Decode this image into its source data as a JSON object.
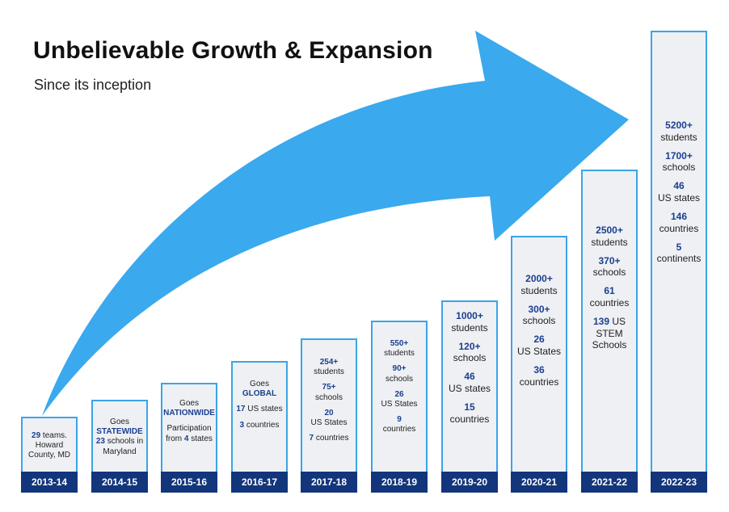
{
  "title": "Unbelievable Growth & Expansion",
  "subtitle": "Since its inception",
  "colors": {
    "arrow": "#3aa9ee",
    "bar_fill": "#eef0f4",
    "bar_border": "#3ba4e6",
    "label_bg": "#12357c",
    "highlight": "#1c3f8f"
  },
  "chart_data": {
    "type": "bar",
    "title": "Unbelievable Growth & Expansion",
    "subtitle": "Since its inception",
    "categories": [
      "2013-14",
      "2014-15",
      "2015-16",
      "2016-17",
      "2017-18",
      "2018-19",
      "2019-20",
      "2020-21",
      "2021-22",
      "2022-23"
    ],
    "series": [
      {
        "values": [
          1,
          2,
          3,
          4,
          5,
          6,
          7,
          8,
          9,
          10
        ]
      }
    ],
    "annotations": [
      [
        [
          {
            "t": "29",
            "b": true
          },
          {
            "t": " teams."
          }
        ],
        [
          {
            "t": "Howard"
          }
        ],
        [
          {
            "t": "County, MD"
          }
        ]
      ],
      [
        [
          {
            "t": "Goes"
          }
        ],
        [
          {
            "t": "STATEWIDE",
            "b": true
          }
        ],
        [
          {
            "t": "23",
            "b": true
          },
          {
            "t": " schools in"
          }
        ],
        [
          {
            "t": "Maryland"
          }
        ]
      ],
      [
        [
          {
            "t": "Goes"
          }
        ],
        [
          {
            "t": "NATIONWIDE",
            "b": true
          }
        ],
        [
          {
            "t": ""
          }
        ],
        [
          {
            "t": "Participation"
          }
        ],
        [
          {
            "t": "from "
          },
          {
            "t": "4",
            "b": true
          },
          {
            "t": " states"
          }
        ]
      ],
      [
        [
          {
            "t": "Goes"
          }
        ],
        [
          {
            "t": "GLOBAL",
            "b": true
          }
        ],
        [
          {
            "t": ""
          }
        ],
        [
          {
            "t": "17",
            "b": true
          },
          {
            "t": " US states"
          }
        ],
        [
          {
            "t": ""
          }
        ],
        [
          {
            "t": "3",
            "b": true
          },
          {
            "t": " countries"
          }
        ]
      ],
      [
        [
          {
            "t": "254+",
            "b": true
          }
        ],
        [
          {
            "t": "students"
          }
        ],
        [
          {
            "t": ""
          }
        ],
        [
          {
            "t": "75+",
            "b": true
          }
        ],
        [
          {
            "t": "schools"
          }
        ],
        [
          {
            "t": ""
          }
        ],
        [
          {
            "t": "20",
            "b": true
          }
        ],
        [
          {
            "t": "US States"
          }
        ],
        [
          {
            "t": ""
          }
        ],
        [
          {
            "t": "7",
            "b": true
          },
          {
            "t": " countries"
          }
        ]
      ],
      [
        [
          {
            "t": "550+",
            "b": true
          }
        ],
        [
          {
            "t": "students"
          }
        ],
        [
          {
            "t": ""
          }
        ],
        [
          {
            "t": "90+",
            "b": true
          }
        ],
        [
          {
            "t": "schools"
          }
        ],
        [
          {
            "t": ""
          }
        ],
        [
          {
            "t": "26",
            "b": true
          }
        ],
        [
          {
            "t": "US States"
          }
        ],
        [
          {
            "t": ""
          }
        ],
        [
          {
            "t": "9",
            "b": true
          }
        ],
        [
          {
            "t": "countries"
          }
        ]
      ],
      [
        [
          {
            "t": "1000+",
            "b": true
          }
        ],
        [
          {
            "t": "students"
          }
        ],
        [
          {
            "t": ""
          }
        ],
        [
          {
            "t": "120+",
            "b": true
          }
        ],
        [
          {
            "t": "schools"
          }
        ],
        [
          {
            "t": ""
          }
        ],
        [
          {
            "t": "46",
            "b": true
          }
        ],
        [
          {
            "t": "US states"
          }
        ],
        [
          {
            "t": ""
          }
        ],
        [
          {
            "t": "15",
            "b": true
          }
        ],
        [
          {
            "t": "countries"
          }
        ]
      ],
      [
        [
          {
            "t": "2000+",
            "b": true
          }
        ],
        [
          {
            "t": "students"
          }
        ],
        [
          {
            "t": ""
          }
        ],
        [
          {
            "t": "300+",
            "b": true
          }
        ],
        [
          {
            "t": "schools"
          }
        ],
        [
          {
            "t": ""
          }
        ],
        [
          {
            "t": "26",
            "b": true
          }
        ],
        [
          {
            "t": "US States"
          }
        ],
        [
          {
            "t": ""
          }
        ],
        [
          {
            "t": "36",
            "b": true
          }
        ],
        [
          {
            "t": "countries"
          }
        ]
      ],
      [
        [
          {
            "t": "2500+",
            "b": true
          }
        ],
        [
          {
            "t": "students"
          }
        ],
        [
          {
            "t": ""
          }
        ],
        [
          {
            "t": "370+",
            "b": true
          }
        ],
        [
          {
            "t": "schools"
          }
        ],
        [
          {
            "t": ""
          }
        ],
        [
          {
            "t": "61",
            "b": true
          }
        ],
        [
          {
            "t": "countries"
          }
        ],
        [
          {
            "t": ""
          }
        ],
        [
          {
            "t": "139",
            "b": true
          },
          {
            "t": " US"
          }
        ],
        [
          {
            "t": "STEM"
          }
        ],
        [
          {
            "t": "Schools"
          }
        ]
      ],
      [
        [
          {
            "t": "5200+",
            "b": true
          }
        ],
        [
          {
            "t": "students"
          }
        ],
        [
          {
            "t": ""
          }
        ],
        [
          {
            "t": "1700+",
            "b": true
          }
        ],
        [
          {
            "t": "schools"
          }
        ],
        [
          {
            "t": ""
          }
        ],
        [
          {
            "t": "46",
            "b": true
          }
        ],
        [
          {
            "t": "US states"
          }
        ],
        [
          {
            "t": ""
          }
        ],
        [
          {
            "t": "146",
            "b": true
          }
        ],
        [
          {
            "t": "countries"
          }
        ],
        [
          {
            "t": ""
          }
        ],
        [
          {
            "t": "5",
            "b": true
          }
        ],
        [
          {
            "t": "continents"
          }
        ]
      ]
    ],
    "legend": "none",
    "grid": false
  }
}
